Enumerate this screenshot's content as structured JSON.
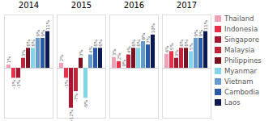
{
  "chart_data": {
    "type": "bar",
    "categories": [
      "2014",
      "2015",
      "2016",
      "2017"
    ],
    "series": [
      {
        "name": "Thailand",
        "color": "#f2a0b5",
        "values": [
          1.0,
          1.5,
          3.2,
          4.2
        ],
        "value_labels": [
          "1%",
          "2%",
          "3%",
          "4%"
        ]
      },
      {
        "name": "Indonesia",
        "color": "#e8304a",
        "values": [
          -3.0,
          -3.0,
          2.0,
          5.0
        ],
        "value_labels": [
          "-3%",
          "-3%",
          "2%",
          "5%"
        ]
      },
      {
        "name": "Singapore",
        "color": "#aa1530",
        "values": [
          -3.0,
          -12.0,
          0.0,
          3.0
        ],
        "value_labels": [
          "-3%",
          "-12%",
          "0%",
          "3%"
        ]
      },
      {
        "name": "Malaysia",
        "color": "#c0253a",
        "values": [
          3.0,
          -7.0,
          4.0,
          6.0
        ],
        "value_labels": [
          "3%",
          "-7%",
          "4%",
          "6%"
        ]
      },
      {
        "name": "Philippines",
        "color": "#7a1020",
        "values": [
          6.0,
          3.0,
          6.0,
          6.0
        ],
        "value_labels": [
          "6%",
          "3%",
          "6%",
          "6%"
        ]
      },
      {
        "name": "Myanmar",
        "color": "#82d4e8",
        "values": [
          6.0,
          -9.0,
          6.0,
          5.0
        ],
        "value_labels": [
          "6%",
          "-9%",
          "6%",
          "5%"
        ]
      },
      {
        "name": "Vietnam",
        "color": "#6699cc",
        "values": [
          9.0,
          4.0,
          8.0,
          9.0
        ],
        "value_labels": [
          "9%",
          "4%",
          "8%",
          "9%"
        ]
      },
      {
        "name": "Cambodia",
        "color": "#2a5aaa",
        "values": [
          9.0,
          6.0,
          7.0,
          9.0
        ],
        "value_labels": [
          "9%",
          "6%",
          "7%",
          "9%"
        ]
      },
      {
        "name": "Laos",
        "color": "#0a1a50",
        "values": [
          11.0,
          6.0,
          10.0,
          11.0
        ],
        "value_labels": [
          "11%",
          "6%",
          "10%",
          "11%"
        ]
      }
    ],
    "ylim": [
      -15,
      16
    ],
    "data_labels": true,
    "tick_labels": "x",
    "grid": false,
    "legend": "right"
  }
}
